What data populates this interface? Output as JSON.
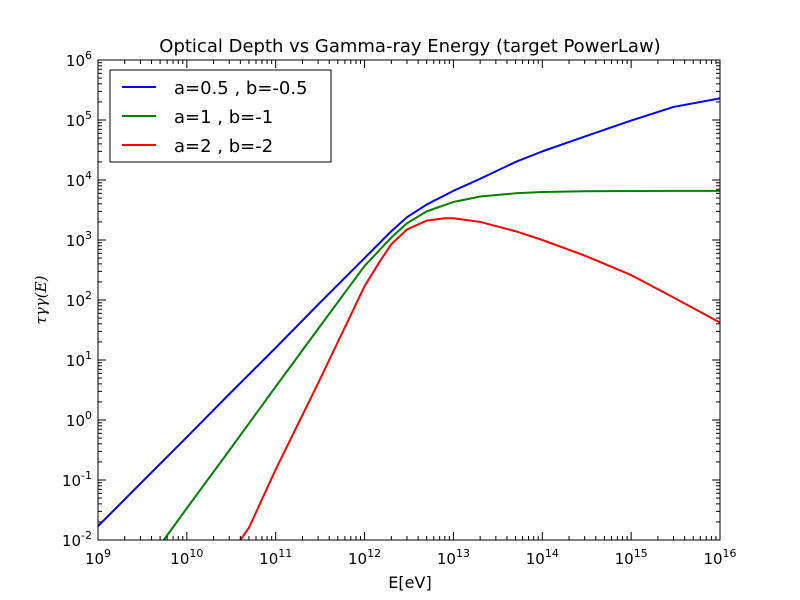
{
  "chart_data": {
    "type": "line",
    "title": "Optical Depth vs Gamma-ray Energy (target PowerLaw)",
    "xlabel": "E[eV]",
    "ylabel": "τγγ(E)",
    "x_scale": "log",
    "y_scale": "log",
    "xlim": [
      1000000000.0,
      1e+16
    ],
    "ylim": [
      0.01,
      1000000
    ],
    "x_ticks": [
      {
        "base": "10",
        "exp": "9"
      },
      {
        "base": "10",
        "exp": "10"
      },
      {
        "base": "10",
        "exp": "11"
      },
      {
        "base": "10",
        "exp": "12"
      },
      {
        "base": "10",
        "exp": "13"
      },
      {
        "base": "10",
        "exp": "14"
      },
      {
        "base": "10",
        "exp": "15"
      },
      {
        "base": "10",
        "exp": "16"
      }
    ],
    "y_ticks": [
      {
        "base": "10",
        "exp": "-2"
      },
      {
        "base": "10",
        "exp": "-1"
      },
      {
        "base": "10",
        "exp": "0"
      },
      {
        "base": "10",
        "exp": "1"
      },
      {
        "base": "10",
        "exp": "2"
      },
      {
        "base": "10",
        "exp": "3"
      },
      {
        "base": "10",
        "exp": "4"
      },
      {
        "base": "10",
        "exp": "5"
      },
      {
        "base": "10",
        "exp": "6"
      }
    ],
    "grid": false,
    "legend_position": "top-left",
    "series": [
      {
        "name": "a=0.5 , b=-0.5",
        "color": "#0000ff",
        "x": [
          1000000000.0,
          3000000000.0,
          10000000000.0,
          30000000000.0,
          100000000000.0,
          300000000000.0,
          1000000000000.0,
          2000000000000.0,
          3000000000000.0,
          5000000000000.0,
          10000000000000.0,
          20000000000000.0,
          50000000000000.0,
          100000000000000.0,
          300000000000000.0,
          1000000000000000.0,
          3000000000000000.0,
          1e+16
        ],
        "y": [
          0.017,
          0.087,
          0.52,
          2.7,
          16,
          84,
          500,
          1400,
          2400,
          3900,
          6600,
          10500,
          20000,
          30000,
          53000,
          98000,
          165000,
          230000
        ]
      },
      {
        "name": "a=1 , b=-1",
        "color": "#008000",
        "x": [
          5500000000.0,
          10000000000.0,
          30000000000.0,
          100000000000.0,
          300000000000.0,
          1000000000000.0,
          2000000000000.0,
          3000000000000.0,
          5000000000000.0,
          10000000000000.0,
          20000000000000.0,
          50000000000000.0,
          100000000000000.0,
          300000000000000.0,
          1000000000000000.0,
          3000000000000000.0,
          1e+16
        ],
        "y": [
          0.01,
          0.034,
          0.31,
          3.6,
          33,
          370,
          1100,
          1900,
          3000,
          4300,
          5300,
          6000,
          6300,
          6500,
          6550,
          6580,
          6600
        ]
      },
      {
        "name": "a=2 , b=-2",
        "color": "#ff0000",
        "x": [
          40000000000.0,
          50000000000.0,
          100000000000.0,
          300000000000.0,
          1000000000000.0,
          1500000000000.0,
          2000000000000.0,
          3000000000000.0,
          5000000000000.0,
          8000000000000.0,
          10000000000000.0,
          20000000000000.0,
          50000000000000.0,
          100000000000000.0,
          300000000000000.0,
          1000000000000000.0,
          3000000000000000.0,
          1e+16
        ],
        "y": [
          0.01,
          0.016,
          0.15,
          4.1,
          170,
          450,
          850,
          1500,
          2100,
          2300,
          2300,
          2000,
          1400,
          1000,
          550,
          260,
          110,
          42
        ]
      }
    ]
  }
}
